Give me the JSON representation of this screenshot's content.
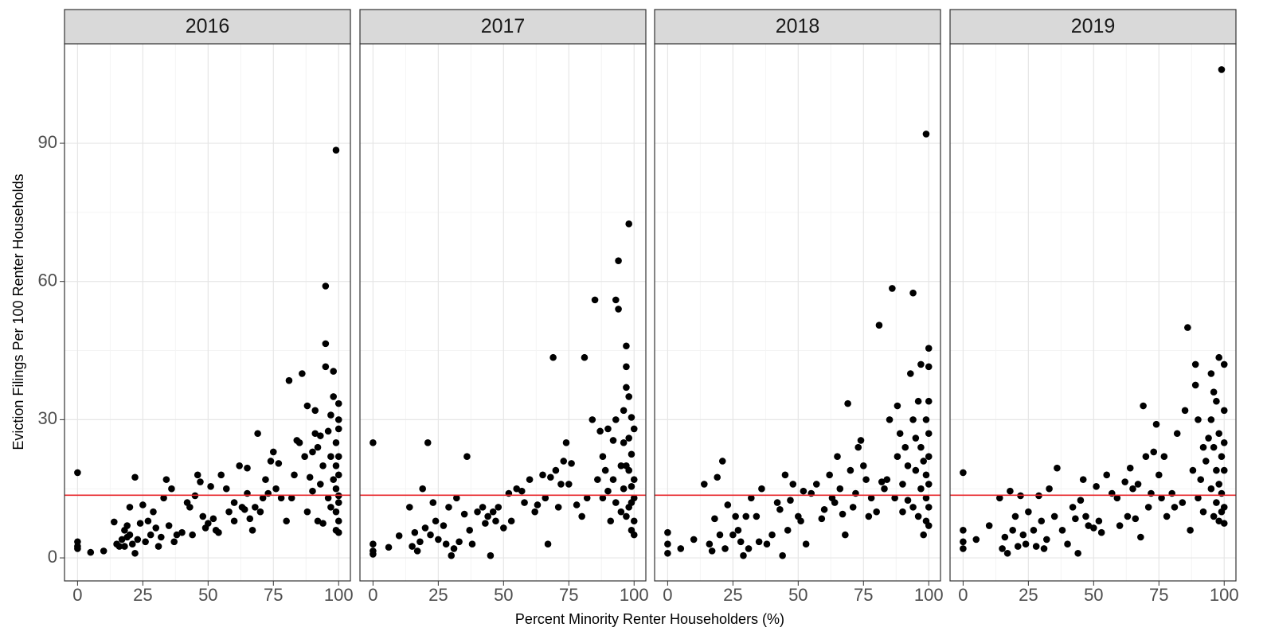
{
  "chart_data": {
    "type": "scatter",
    "x_label": "Percent Minority Renter Householders (%)",
    "y_label": "Eviction Filings Per 100 Renter Households",
    "xlim": [
      -5,
      104.5
    ],
    "ylim": [
      -5,
      111.6
    ],
    "xticks": [
      0,
      25,
      50,
      75,
      100
    ],
    "yticks": [
      0,
      30,
      60,
      90
    ],
    "grid": true,
    "minor_grid": true,
    "color": "#000000",
    "hline": {
      "value": 13.6,
      "color": "#e8262a"
    },
    "panels": [
      {
        "title": "2016",
        "x": [
          0,
          0,
          0,
          0,
          5,
          10,
          14,
          15,
          16,
          17,
          18,
          18,
          19,
          19,
          20,
          20,
          21,
          22,
          22,
          23,
          24,
          25,
          26,
          27,
          28,
          29,
          30,
          31,
          32,
          33,
          34,
          35,
          36,
          37,
          38,
          40,
          42,
          43,
          44,
          45,
          46,
          47,
          48,
          49,
          50,
          51,
          52,
          53,
          54,
          55,
          57,
          58,
          60,
          60,
          62,
          63,
          64,
          65,
          65,
          66,
          67,
          68,
          69,
          70,
          71,
          72,
          73,
          74,
          75,
          76,
          77,
          78,
          80,
          81,
          82,
          83,
          84,
          85,
          86,
          87,
          88,
          88,
          89,
          90,
          90,
          91,
          91,
          92,
          92,
          93,
          93,
          94,
          94,
          95,
          95,
          95,
          96,
          96,
          97,
          97,
          97,
          98,
          98,
          98,
          99,
          99,
          99,
          99,
          99,
          99,
          100,
          100,
          100,
          100,
          100,
          100,
          100,
          100,
          100
        ],
        "values": [
          18.5,
          3.5,
          2.5,
          2,
          1.2,
          1.5,
          7.8,
          3,
          2.5,
          4,
          6,
          2.5,
          7,
          4.5,
          11,
          5,
          3,
          17.5,
          1,
          4,
          7.5,
          11.5,
          3.5,
          8,
          5,
          10,
          6.5,
          2.5,
          4.5,
          13,
          17,
          7,
          15,
          3.5,
          5,
          5.5,
          12,
          11,
          5,
          13.5,
          18,
          16.5,
          9,
          6.5,
          7.5,
          15.5,
          8.5,
          6,
          5.5,
          18,
          15,
          10,
          12,
          8,
          20,
          11,
          10.5,
          19.5,
          14,
          8.5,
          6,
          11,
          27,
          10,
          13,
          17,
          14,
          21,
          23,
          15,
          20.5,
          13,
          8,
          38.5,
          13,
          18,
          25.5,
          25,
          40,
          22,
          33,
          10,
          17.5,
          23,
          14.5,
          32,
          27,
          8,
          24,
          26.5,
          16,
          20,
          7.5,
          46.5,
          59,
          41.5,
          27.5,
          13,
          31,
          22,
          11,
          40.5,
          35,
          17,
          88.5,
          25,
          20,
          15,
          10,
          6,
          33.5,
          30,
          28,
          22,
          18,
          13.5,
          12,
          8,
          5.5
        ]
      },
      {
        "title": "2017",
        "x": [
          0,
          0,
          0,
          0,
          6,
          10,
          14,
          15,
          16,
          17,
          18,
          19,
          20,
          21,
          22,
          23,
          24,
          25,
          27,
          28,
          29,
          30,
          31,
          32,
          33,
          35,
          36,
          37,
          38,
          40,
          42,
          43,
          44,
          45,
          46,
          47,
          48,
          50,
          52,
          53,
          55,
          57,
          58,
          60,
          62,
          63,
          65,
          66,
          67,
          68,
          69,
          70,
          71,
          72,
          73,
          74,
          75,
          76,
          78,
          80,
          81,
          82,
          84,
          85,
          86,
          87,
          88,
          88,
          89,
          90,
          90,
          91,
          92,
          92,
          93,
          93,
          93,
          94,
          94,
          95,
          95,
          96,
          96,
          96,
          97,
          97,
          97,
          97,
          97,
          98,
          98,
          98,
          98,
          98,
          99,
          99,
          99,
          99,
          99,
          100,
          100,
          100,
          100,
          100
        ],
        "values": [
          25,
          3,
          1.5,
          0.8,
          2.3,
          4.8,
          11,
          2.5,
          5.5,
          1.5,
          3.5,
          15,
          6.5,
          25,
          5,
          12,
          8,
          4,
          7,
          3,
          11,
          0.5,
          2,
          13,
          3.5,
          9.5,
          22,
          6,
          3,
          10,
          11,
          7.5,
          9,
          0.5,
          10,
          8,
          11,
          6.5,
          14,
          8,
          15,
          14.5,
          12,
          17,
          10,
          11.5,
          18,
          13,
          3,
          17.5,
          43.5,
          19,
          11,
          16,
          21,
          25,
          16,
          20.5,
          11.5,
          9,
          43.5,
          13,
          30,
          56,
          17,
          27.5,
          22,
          13,
          19,
          28,
          14.5,
          8,
          25.5,
          17,
          56,
          30,
          12,
          54,
          64.5,
          20,
          10,
          32,
          25,
          15,
          46,
          41.5,
          37,
          20,
          9,
          72.5,
          35,
          26,
          19,
          11,
          30.5,
          22.5,
          15.5,
          12,
          6,
          28,
          17,
          13,
          8,
          5
        ]
      },
      {
        "title": "2018",
        "x": [
          0,
          0,
          0,
          5,
          10,
          14,
          16,
          17,
          18,
          19,
          20,
          21,
          22,
          23,
          25,
          26,
          27,
          28,
          29,
          30,
          31,
          32,
          34,
          35,
          36,
          38,
          40,
          42,
          43,
          44,
          45,
          46,
          47,
          48,
          50,
          51,
          52,
          53,
          55,
          57,
          59,
          60,
          62,
          63,
          64,
          65,
          66,
          67,
          68,
          69,
          70,
          71,
          72,
          73,
          74,
          75,
          76,
          77,
          78,
          80,
          81,
          82,
          83,
          84,
          85,
          86,
          87,
          88,
          88,
          89,
          90,
          90,
          91,
          92,
          92,
          93,
          94,
          94,
          94,
          95,
          95,
          96,
          96,
          97,
          97,
          97,
          98,
          98,
          99,
          99,
          99,
          99,
          99,
          100,
          100,
          100,
          100,
          100,
          100,
          100,
          100
        ],
        "values": [
          5.5,
          3,
          1,
          2,
          4,
          16,
          3,
          1.5,
          8.5,
          17.5,
          5,
          21,
          2,
          11.5,
          5,
          9,
          6,
          3.5,
          0.5,
          9,
          2,
          13,
          9,
          3.5,
          15,
          3,
          5,
          12,
          10.5,
          0.5,
          18,
          6,
          12.5,
          16,
          9,
          8,
          14.5,
          3,
          14,
          16,
          8.5,
          10.5,
          18,
          13,
          12,
          22,
          15,
          9.5,
          5,
          33.5,
          19,
          11,
          14,
          24,
          25.5,
          20,
          17,
          9,
          13,
          10,
          50.5,
          16.5,
          15,
          17,
          30,
          58.5,
          13,
          33,
          22,
          27,
          16,
          10,
          24,
          20,
          12.5,
          40,
          57.5,
          30,
          11,
          26,
          19,
          34,
          9,
          42,
          24,
          15,
          5,
          21,
          92,
          30,
          18,
          13,
          8,
          45.5,
          41.5,
          34,
          27,
          22,
          16,
          11,
          7
        ]
      },
      {
        "title": "2019",
        "x": [
          0,
          0,
          0,
          0,
          5,
          10,
          14,
          15,
          16,
          17,
          18,
          19,
          20,
          21,
          22,
          23,
          24,
          25,
          27,
          28,
          29,
          30,
          31,
          32,
          33,
          35,
          36,
          38,
          40,
          42,
          43,
          44,
          45,
          46,
          47,
          48,
          50,
          51,
          52,
          53,
          55,
          57,
          59,
          60,
          62,
          63,
          64,
          65,
          66,
          67,
          68,
          69,
          70,
          71,
          72,
          73,
          74,
          75,
          76,
          77,
          78,
          80,
          81,
          82,
          84,
          85,
          86,
          87,
          88,
          89,
          89,
          90,
          90,
          91,
          92,
          92,
          93,
          94,
          95,
          95,
          95,
          96,
          96,
          96,
          97,
          97,
          97,
          98,
          98,
          98,
          98,
          99,
          99,
          99,
          99,
          100,
          100,
          100,
          100,
          100,
          100
        ],
        "values": [
          18.5,
          6,
          3.5,
          2,
          4,
          7,
          13,
          2,
          4.5,
          1,
          14.5,
          6,
          9,
          2.5,
          13.5,
          5,
          3,
          10,
          6,
          2.5,
          13.5,
          8,
          2,
          4,
          15,
          9,
          19.5,
          6,
          3,
          11,
          8.5,
          1,
          12.5,
          17,
          9,
          7,
          6.5,
          15.5,
          8,
          5.5,
          18,
          14,
          13,
          7,
          16.5,
          9,
          19.5,
          15,
          8.5,
          16,
          4.5,
          33,
          22,
          11,
          14,
          23,
          29,
          18,
          13,
          22,
          9,
          14,
          11,
          27,
          12,
          32,
          50,
          6,
          19,
          42,
          37.5,
          30,
          13,
          17,
          24,
          10,
          21,
          26,
          40,
          30,
          15,
          36,
          24,
          9,
          34,
          19,
          12,
          43.5,
          27,
          16,
          8,
          106,
          22,
          14,
          10,
          42,
          32,
          25,
          19,
          11,
          7.5
        ]
      }
    ]
  }
}
